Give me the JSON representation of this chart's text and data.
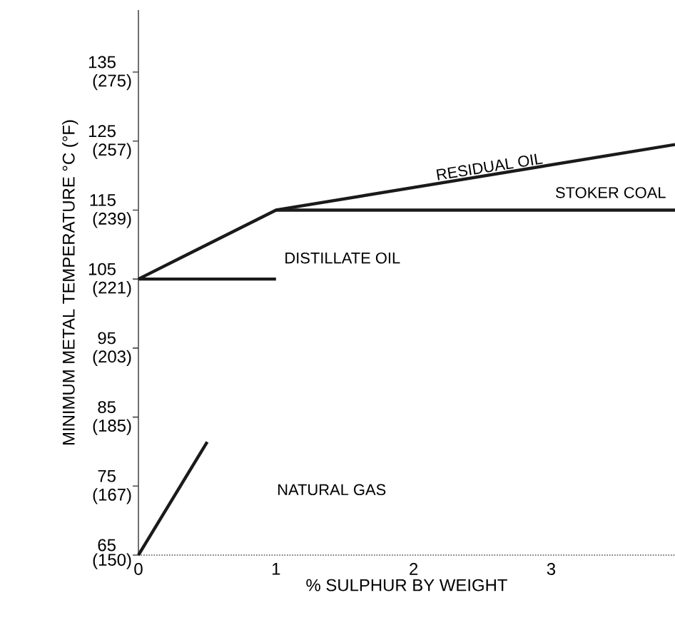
{
  "chart_data": {
    "type": "line",
    "xlabel": "% SULPHUR BY WEIGHT",
    "ylabel": "MINIMUM METAL TEMPERATURE °C (°F)",
    "xlim": [
      0,
      3.9
    ],
    "ylim": [
      65,
      144
    ],
    "xticks": [
      0,
      1,
      2,
      3
    ],
    "yticks": [
      65,
      75,
      85,
      95,
      105,
      115,
      125,
      135
    ],
    "y2lim": [
      149,
      291.2
    ],
    "y2ticks": [
      {
        "value": 150,
        "label": "(150)"
      },
      {
        "value": 167,
        "label": "(167)"
      },
      {
        "value": 185,
        "label": "(185)"
      },
      {
        "value": 203,
        "label": "(203)"
      },
      {
        "value": 221,
        "label": "(221)"
      },
      {
        "value": 239,
        "label": "(239)"
      },
      {
        "value": 257,
        "label": "(257)"
      },
      {
        "value": 275,
        "label": "(275)"
      }
    ],
    "grid": false,
    "marker": "none",
    "line_style": "solid",
    "series": [
      {
        "color": "#1a1a1a",
        "x": [
          0,
          1,
          3.9
        ],
        "values": [
          105,
          115,
          124.5
        ]
      },
      {
        "color": "#1a1a1a",
        "x": [
          1,
          3.9
        ],
        "values": [
          115,
          115
        ]
      },
      {
        "color": "#1a1a1a",
        "x": [
          0,
          1
        ],
        "values": [
          105,
          105
        ]
      },
      {
        "color": "#1a1a1a",
        "x": [
          0,
          0.5
        ],
        "values": [
          65,
          81.4
        ]
      }
    ],
    "annotations": [
      {
        "text": "RESIDUAL OIL",
        "x": 2.55,
        "y": 121.3
      },
      "STOKER COAL",
      "DISTILLATE OIL",
      "NATURAL GAS"
    ]
  }
}
